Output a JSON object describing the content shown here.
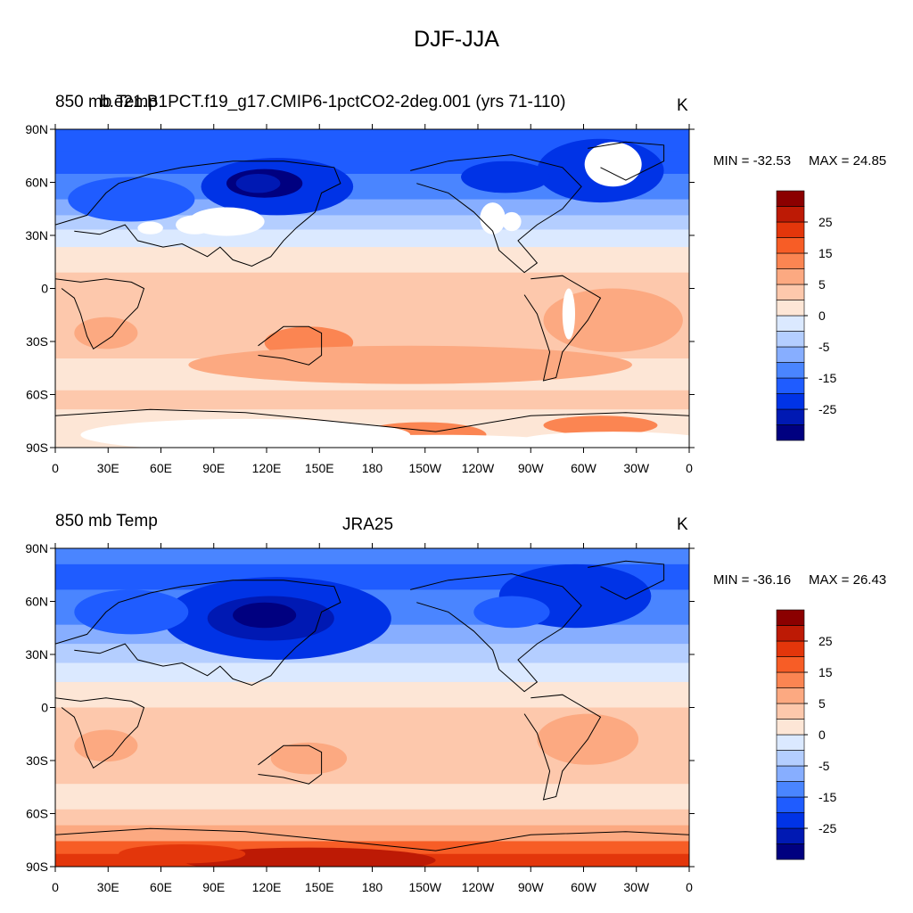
{
  "title": "DJF-JJA",
  "panels": [
    {
      "left_title": "850 mb Temp",
      "center_title": "b.e21.B1PCT.f19_g17.CMIP6-1pctCO2-2deg.001 (yrs 71-110)",
      "units": "K",
      "min_label": "MIN = -32.53",
      "max_label": "MAX =  24.85"
    },
    {
      "left_title": "850 mb Temp",
      "center_title": "JRA25",
      "units": "K",
      "min_label": "MIN = -36.16",
      "max_label": "MAX =  26.43"
    }
  ],
  "lat_ticks": [
    "90N",
    "60N",
    "30N",
    "0",
    "30S",
    "60S",
    "90S"
  ],
  "lon_ticks": [
    "0",
    "30E",
    "60E",
    "90E",
    "120E",
    "150E",
    "180",
    "150W",
    "120W",
    "90W",
    "60W",
    "30W",
    "0"
  ],
  "colorbar": {
    "colors": [
      "#000080",
      "#0019b3",
      "#0033e6",
      "#1f5cff",
      "#4a85ff",
      "#87aeff",
      "#b4ceff",
      "#dbe9ff",
      "#fde6d6",
      "#fdc8ac",
      "#fca981",
      "#fb8552",
      "#f75d26",
      "#e3360b",
      "#bd1a05",
      "#8b0000"
    ],
    "labels": [
      "25",
      "15",
      "5",
      "0",
      "-5",
      "-15",
      "-25"
    ]
  },
  "chart_data": [
    {
      "type": "heatmap",
      "title": "DJF-JJA",
      "left_title": "850 mb Temp",
      "center_title": "b.e21.B1PCT.f19_g17.CMIP6-1pctCO2-2deg.001 (yrs 71-110)",
      "units": "K",
      "x_ticks": [
        "0",
        "30E",
        "60E",
        "90E",
        "120E",
        "150E",
        "180",
        "150W",
        "120W",
        "90W",
        "60W",
        "30W",
        "0"
      ],
      "y_ticks": [
        "90N",
        "60N",
        "30N",
        "0",
        "30S",
        "60S",
        "90S"
      ],
      "min": -32.53,
      "max": 24.85,
      "colorbar_levels": [
        -30,
        -25,
        -20,
        -15,
        -10,
        -5,
        0,
        5,
        10,
        15,
        20,
        25,
        30
      ],
      "missing_regions": [
        "Tibetan Plateau",
        "Rocky Mountains",
        "Greenland",
        "Andes",
        "Antarctica"
      ]
    },
    {
      "type": "heatmap",
      "left_title": "850 mb Temp",
      "center_title": "JRA25",
      "units": "K",
      "x_ticks": [
        "0",
        "30E",
        "60E",
        "90E",
        "120E",
        "150E",
        "180",
        "150W",
        "120W",
        "90W",
        "60W",
        "30W",
        "0"
      ],
      "y_ticks": [
        "90N",
        "60N",
        "30N",
        "0",
        "30S",
        "60S",
        "90S"
      ],
      "min": -36.16,
      "max": 26.43,
      "colorbar_levels": [
        -30,
        -25,
        -20,
        -15,
        -10,
        -5,
        0,
        5,
        10,
        15,
        20,
        25,
        30
      ]
    }
  ]
}
